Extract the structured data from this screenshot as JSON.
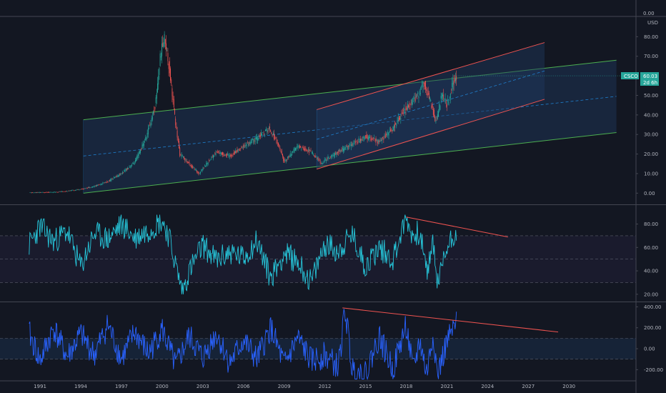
{
  "symbol": "CSCO",
  "currency": "USD",
  "price_tag": {
    "value": "60.03",
    "countdown": "2d 6h"
  },
  "price_axis_top_label": "0.00",
  "colors": {
    "background": "#131722",
    "candle_up": "#26a69a",
    "candle_down": "#ef5350",
    "outer_channel": "#4caf50",
    "inner_channel": "#ef5350",
    "channel_fill": "#1e3a5f",
    "channel_mid": "#2196f3",
    "rsi_line": "#26c6da",
    "rsi_band": "#7e57c2",
    "cci_line": "#2962ff",
    "divergence_line": "#ef5350",
    "price_tag": "#26a69a"
  },
  "x_axis": {
    "ticks": [
      "1991",
      "1994",
      "1997",
      "2000",
      "2003",
      "2006",
      "2009",
      "2012",
      "2015",
      "2018",
      "2021",
      "2024",
      "2027",
      "2030"
    ]
  },
  "chart_data": [
    {
      "type": "line",
      "name": "price",
      "y_ticks": [
        "80.00",
        "70.00",
        "60.00",
        "50.00",
        "40.00",
        "30.00",
        "20.00",
        "10.00",
        "0.00"
      ],
      "ylim": [
        -5,
        90
      ],
      "x": [
        1990.2,
        1992,
        1993,
        1994,
        1995,
        1996,
        1997,
        1998,
        1998.8,
        1999.5,
        1999.9,
        2000.2,
        2000.6,
        2001,
        2001.3,
        2002,
        2002.7,
        2003.5,
        2004,
        2005,
        2006,
        2007,
        2007.9,
        2008.5,
        2009,
        2010,
        2011,
        2011.8,
        2012,
        2013,
        2014,
        2015,
        2016,
        2017,
        2018,
        2018.8,
        2019.3,
        2019.8,
        2020.2,
        2020.6,
        2021,
        2021.4,
        2021.7
      ],
      "y": [
        0.2,
        0.5,
        1,
        2,
        3.5,
        6,
        10,
        16,
        28,
        45,
        72,
        80,
        60,
        35,
        20,
        15,
        10,
        17,
        21,
        19,
        24,
        28,
        33,
        26,
        16,
        24,
        21,
        15,
        17,
        21,
        25,
        29,
        26,
        33,
        44,
        49,
        57,
        46,
        36,
        50,
        45,
        55,
        60
      ],
      "channels": [
        {
          "name": "outer",
          "x": [
            1994.2,
            2033.5
          ],
          "lower": [
            0,
            31
          ],
          "upper": [
            37.5,
            68
          ],
          "mid": [
            19,
            49.5
          ]
        },
        {
          "name": "inner",
          "x": [
            2011.4,
            2028.2
          ],
          "lower": [
            12.3,
            48
          ],
          "upper": [
            42.7,
            77
          ],
          "mid": [
            27.5,
            62.5
          ]
        }
      ]
    },
    {
      "type": "line",
      "name": "rsi",
      "y_ticks": [
        "80.00",
        "60.00",
        "40.00",
        "20.00"
      ],
      "ylim": [
        15,
        95
      ],
      "bands": [
        30,
        50,
        70
      ],
      "x": [
        1990.2,
        1991,
        1992,
        1993,
        1994,
        1995,
        1996,
        1997,
        1998,
        1999,
        2000,
        2000.5,
        2001,
        2001.5,
        2002,
        2003,
        2004,
        2005,
        2006,
        2007,
        2008,
        2009,
        2010,
        2011,
        2012,
        2013,
        2014,
        2015,
        2016,
        2017,
        2018,
        2018.5,
        2019,
        2019.5,
        2020,
        2020.3,
        2021,
        2021.7
      ],
      "y": [
        62,
        78,
        65,
        74,
        43,
        72,
        67,
        80,
        68,
        75,
        83,
        70,
        45,
        22,
        40,
        62,
        49,
        56,
        51,
        66,
        34,
        55,
        48,
        30,
        63,
        57,
        71,
        44,
        60,
        50,
        85,
        69,
        74,
        38,
        65,
        28,
        60,
        76
      ],
      "divergence": {
        "x": [
          2018,
          2025.5
        ],
        "y": [
          86,
          69
        ]
      }
    },
    {
      "type": "line",
      "name": "cci",
      "y_ticks": [
        "400.00",
        "200.00",
        "0.00",
        "-200.00"
      ],
      "ylim": [
        -300,
        430
      ],
      "bands": [
        -100,
        100
      ],
      "x": [
        1990.2,
        1991,
        1992,
        1993,
        1994,
        1995,
        1996,
        1997,
        1998,
        1999,
        2000,
        2001,
        2002,
        2003,
        2004,
        2005,
        2006,
        2007,
        2008,
        2009,
        2010,
        2011,
        2012,
        2013,
        2013.5,
        2014,
        2015,
        2016,
        2017,
        2018,
        2018.5,
        2019,
        2019.5,
        2020,
        2020.3,
        2021,
        2021.7
      ],
      "y": [
        150,
        -120,
        200,
        -80,
        140,
        -60,
        230,
        -100,
        160,
        -50,
        190,
        -170,
        120,
        -90,
        150,
        -140,
        80,
        -110,
        200,
        -160,
        100,
        -120,
        -60,
        -180,
        380,
        -190,
        -250,
        120,
        -200,
        230,
        -220,
        80,
        -240,
        150,
        -260,
        60,
        230
      ],
      "divergence": {
        "x": [
          2013.3,
          2029.2
        ],
        "y": [
          390,
          160
        ]
      }
    }
  ]
}
